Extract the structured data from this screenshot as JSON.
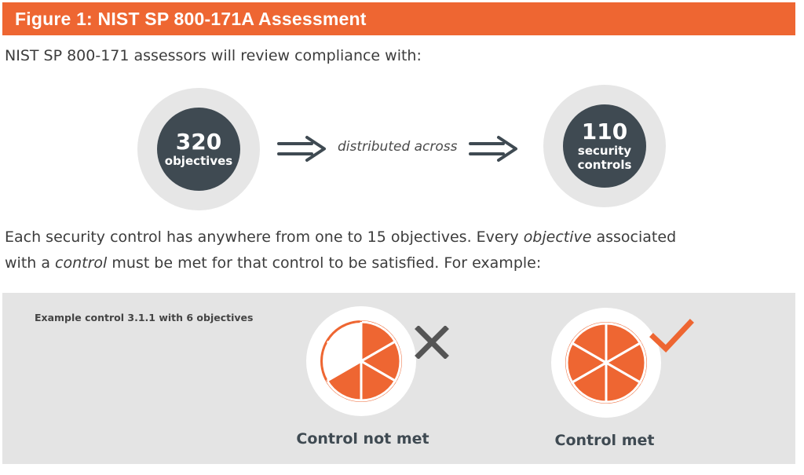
{
  "colors": {
    "brand": "#ee6632",
    "dark": "#3f4a52",
    "x_gray": "#555555"
  },
  "header": {
    "title": "Figure 1: NIST SP 800-171A Assessment"
  },
  "intro": "NIST SP 800-171 assessors will review compliance with:",
  "flow": {
    "objectives": {
      "number": "320",
      "label": "objectives"
    },
    "middle_text": "distributed across",
    "controls": {
      "number": "110",
      "label_line1": "security",
      "label_line2": "controls"
    }
  },
  "paragraph": {
    "p1": "Each security control has anywhere from one to 15 objectives. Every ",
    "objective_word": "objective",
    "p2": " associated",
    "p3": "with a ",
    "control_word": "control",
    "p4": " must be met for that control to be satisfied. For example:"
  },
  "example": {
    "label": "Example control 3.1.1 with 6 objectives",
    "objectives_total": 6,
    "not_met": {
      "caption": "Control not met",
      "objectives_met": 4,
      "icon": "x-mark-icon"
    },
    "met": {
      "caption": "Control met",
      "objectives_met": 6,
      "icon": "checkmark-icon"
    }
  }
}
